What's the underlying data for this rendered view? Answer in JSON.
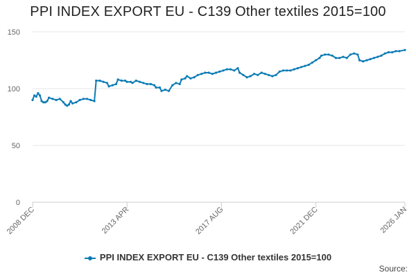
{
  "title": "PPI INDEX EXPORT EU - C139 Other textiles 2015=100",
  "source_label": "Source:",
  "colors": {
    "series": "#0b7bb5",
    "grid": "#e6e6e6",
    "axis": "#cccccc",
    "text": "#666666"
  },
  "chart_data": {
    "type": "line",
    "title": "PPI INDEX EXPORT EU - C139 Other textiles 2015=100",
    "xlabel": "",
    "ylabel": "",
    "ylim": [
      0,
      150
    ],
    "yticks": [
      0,
      50,
      100,
      150
    ],
    "xlim": [
      "2008-12",
      "2026-01"
    ],
    "xticks": [
      {
        "date": "2008-12",
        "label": "2008 DEC"
      },
      {
        "date": "2013-04",
        "label": "2013 APR"
      },
      {
        "date": "2017-08",
        "label": "2017 AUG"
      },
      {
        "date": "2021-12",
        "label": "2021 DEC"
      },
      {
        "date": "2026-01",
        "label": "2026 JAN"
      }
    ],
    "grid": "horizontal",
    "legend_position": "bottom",
    "series": [
      {
        "name": "PPI INDEX EXPORT EU - C139 Other textiles 2015=100",
        "points": [
          [
            "2008-12",
            90
          ],
          [
            "2009-01",
            94
          ],
          [
            "2009-02",
            93
          ],
          [
            "2009-03",
            96
          ],
          [
            "2009-04",
            94
          ],
          [
            "2009-05",
            89
          ],
          [
            "2009-06",
            88
          ],
          [
            "2009-07",
            88
          ],
          [
            "2009-08",
            89
          ],
          [
            "2009-09",
            92
          ],
          [
            "2009-11",
            91
          ],
          [
            "2010-01",
            90
          ],
          [
            "2010-03",
            91
          ],
          [
            "2010-05",
            88
          ],
          [
            "2010-06",
            86
          ],
          [
            "2010-07",
            85
          ],
          [
            "2010-08",
            86
          ],
          [
            "2010-09",
            89
          ],
          [
            "2010-10",
            87
          ],
          [
            "2010-12",
            88
          ],
          [
            "2011-02",
            90
          ],
          [
            "2011-04",
            91
          ],
          [
            "2011-06",
            91
          ],
          [
            "2011-08",
            90
          ],
          [
            "2011-10",
            89
          ],
          [
            "2011-11",
            107
          ],
          [
            "2012-01",
            107
          ],
          [
            "2012-03",
            106
          ],
          [
            "2012-05",
            105
          ],
          [
            "2012-06",
            102
          ],
          [
            "2012-08",
            103
          ],
          [
            "2012-10",
            104
          ],
          [
            "2012-11",
            108
          ],
          [
            "2013-01",
            107
          ],
          [
            "2013-03",
            107
          ],
          [
            "2013-04",
            106
          ],
          [
            "2013-06",
            106
          ],
          [
            "2013-07",
            105
          ],
          [
            "2013-09",
            107
          ],
          [
            "2013-11",
            106
          ],
          [
            "2014-01",
            105
          ],
          [
            "2014-03",
            104
          ],
          [
            "2014-05",
            104
          ],
          [
            "2014-07",
            103
          ],
          [
            "2014-08",
            101
          ],
          [
            "2014-10",
            101
          ],
          [
            "2014-11",
            98
          ],
          [
            "2015-01",
            99
          ],
          [
            "2015-03",
            98
          ],
          [
            "2015-05",
            103
          ],
          [
            "2015-07",
            105
          ],
          [
            "2015-09",
            104
          ],
          [
            "2015-10",
            108
          ],
          [
            "2015-12",
            109
          ],
          [
            "2016-01",
            111
          ],
          [
            "2016-03",
            109
          ],
          [
            "2016-05",
            110
          ],
          [
            "2016-07",
            112
          ],
          [
            "2016-09",
            113
          ],
          [
            "2016-11",
            114
          ],
          [
            "2017-01",
            114
          ],
          [
            "2017-03",
            113
          ],
          [
            "2017-05",
            114
          ],
          [
            "2017-07",
            115
          ],
          [
            "2017-09",
            116
          ],
          [
            "2017-11",
            117
          ],
          [
            "2018-01",
            117
          ],
          [
            "2018-03",
            116
          ],
          [
            "2018-05",
            118
          ],
          [
            "2018-06",
            114
          ],
          [
            "2018-08",
            112
          ],
          [
            "2018-10",
            110
          ],
          [
            "2018-12",
            111
          ],
          [
            "2019-02",
            113
          ],
          [
            "2019-04",
            112
          ],
          [
            "2019-06",
            114
          ],
          [
            "2019-08",
            113
          ],
          [
            "2019-10",
            112
          ],
          [
            "2019-12",
            111
          ],
          [
            "2020-02",
            112
          ],
          [
            "2020-04",
            115
          ],
          [
            "2020-06",
            116
          ],
          [
            "2020-08",
            116
          ],
          [
            "2020-10",
            116
          ],
          [
            "2020-12",
            117
          ],
          [
            "2021-02",
            118
          ],
          [
            "2021-04",
            119
          ],
          [
            "2021-06",
            120
          ],
          [
            "2021-08",
            121
          ],
          [
            "2021-10",
            123
          ],
          [
            "2021-12",
            125
          ],
          [
            "2022-02",
            127
          ],
          [
            "2022-03",
            129
          ],
          [
            "2022-05",
            130
          ],
          [
            "2022-07",
            130
          ],
          [
            "2022-09",
            129
          ],
          [
            "2022-11",
            127
          ],
          [
            "2023-01",
            127
          ],
          [
            "2023-03",
            128
          ],
          [
            "2023-05",
            127
          ],
          [
            "2023-07",
            130
          ],
          [
            "2023-09",
            131
          ],
          [
            "2023-11",
            130
          ],
          [
            "2023-12",
            125
          ],
          [
            "2024-02",
            124
          ],
          [
            "2024-04",
            125
          ],
          [
            "2024-06",
            126
          ],
          [
            "2024-08",
            127
          ],
          [
            "2024-10",
            128
          ],
          [
            "2024-12",
            129
          ],
          [
            "2025-02",
            131
          ],
          [
            "2025-04",
            132
          ],
          [
            "2025-06",
            132
          ],
          [
            "2025-08",
            133
          ],
          [
            "2025-10",
            133
          ],
          [
            "2026-01",
            134
          ]
        ]
      }
    ]
  }
}
